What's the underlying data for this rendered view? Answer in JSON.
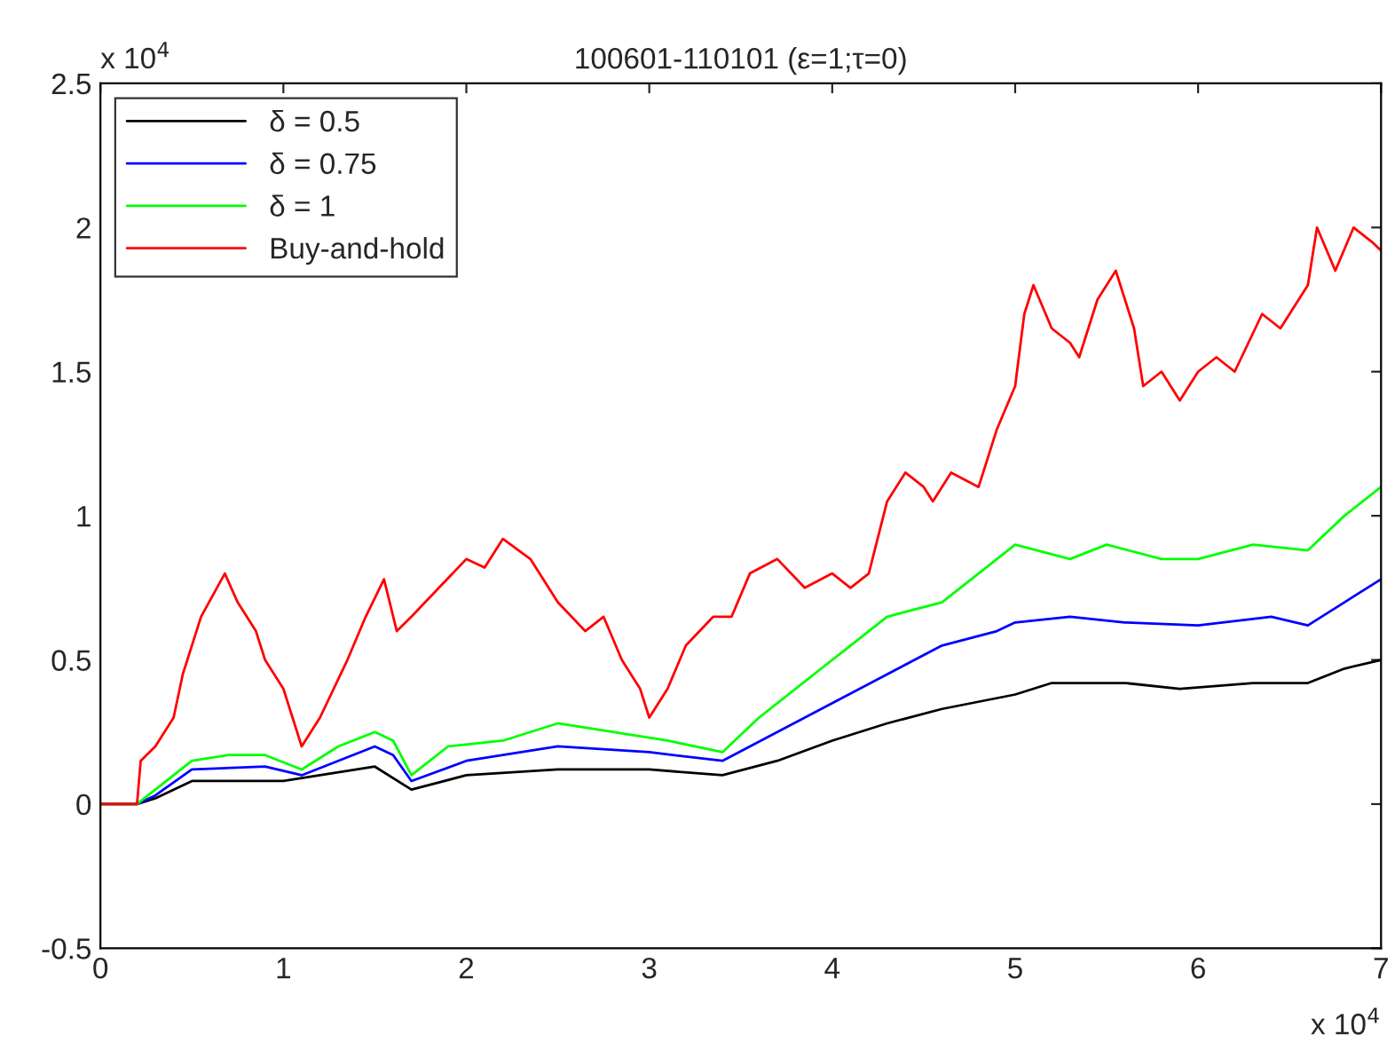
{
  "chart_data": {
    "type": "line",
    "title": "100601-110101 (ε=1;τ=0)",
    "annotations": [
      "x 10$^{4}$",
      "x 10$^{4}$"
    ],
    "xlim": [
      0,
      7
    ],
    "xticks": [
      0,
      1,
      2,
      3,
      4,
      5,
      6,
      7
    ],
    "ylim": [
      -0.5,
      2.5
    ],
    "yticks": [
      -0.5,
      0,
      0.5,
      1,
      1.5,
      2,
      2.5
    ],
    "grid": false,
    "legend": "top left",
    "line_style": "solid",
    "series": [
      {
        "name": "δ = 0.5",
        "color": "#000000",
        "x": [
          0,
          0.2,
          0.3,
          0.5,
          1.0,
          1.5,
          1.7,
          2.0,
          2.5,
          3.0,
          3.4,
          3.7,
          4.0,
          4.3,
          4.6,
          5.0,
          5.2,
          5.6,
          5.9,
          6.3,
          6.6,
          6.8,
          7.0
        ],
        "values": [
          0,
          0,
          0.02,
          0.08,
          0.08,
          0.13,
          0.05,
          0.1,
          0.12,
          0.12,
          0.1,
          0.15,
          0.22,
          0.28,
          0.33,
          0.38,
          0.42,
          0.42,
          0.4,
          0.42,
          0.42,
          0.47,
          0.5
        ]
      },
      {
        "name": "δ = 0.75",
        "color": "#0000ff",
        "x": [
          0,
          0.2,
          0.3,
          0.5,
          0.9,
          1.1,
          1.5,
          1.6,
          1.7,
          2.0,
          2.5,
          3.0,
          3.4,
          3.7,
          4.0,
          4.3,
          4.6,
          4.9,
          5.0,
          5.3,
          5.6,
          6.0,
          6.4,
          6.6,
          6.8,
          7.0
        ],
        "values": [
          0,
          0,
          0.03,
          0.12,
          0.13,
          0.1,
          0.2,
          0.17,
          0.08,
          0.15,
          0.2,
          0.18,
          0.15,
          0.25,
          0.35,
          0.45,
          0.55,
          0.6,
          0.63,
          0.65,
          0.63,
          0.62,
          0.65,
          0.62,
          0.7,
          0.78
        ]
      },
      {
        "name": "δ = 1",
        "color": "#00ff00",
        "x": [
          0,
          0.2,
          0.3,
          0.5,
          0.7,
          0.9,
          1.1,
          1.3,
          1.5,
          1.6,
          1.7,
          1.9,
          2.2,
          2.5,
          2.8,
          3.1,
          3.4,
          3.6,
          3.9,
          4.1,
          4.3,
          4.6,
          4.8,
          5.0,
          5.3,
          5.5,
          5.8,
          6.0,
          6.3,
          6.6,
          6.8,
          7.0
        ],
        "values": [
          0,
          0,
          0.05,
          0.15,
          0.17,
          0.17,
          0.12,
          0.2,
          0.25,
          0.22,
          0.1,
          0.2,
          0.22,
          0.28,
          0.25,
          0.22,
          0.18,
          0.3,
          0.45,
          0.55,
          0.65,
          0.7,
          0.8,
          0.9,
          0.85,
          0.9,
          0.85,
          0.85,
          0.9,
          0.88,
          1.0,
          1.1
        ]
      },
      {
        "name": "Buy-and-hold",
        "color": "#ff0000",
        "x": [
          0,
          0.2,
          0.22,
          0.3,
          0.4,
          0.45,
          0.55,
          0.68,
          0.75,
          0.85,
          0.9,
          1.0,
          1.1,
          1.2,
          1.35,
          1.45,
          1.55,
          1.62,
          1.7,
          1.85,
          2.0,
          2.1,
          2.2,
          2.35,
          2.5,
          2.65,
          2.75,
          2.85,
          2.95,
          3.0,
          3.1,
          3.2,
          3.35,
          3.45,
          3.55,
          3.7,
          3.85,
          4.0,
          4.1,
          4.2,
          4.3,
          4.4,
          4.5,
          4.55,
          4.65,
          4.8,
          4.9,
          5.0,
          5.05,
          5.1,
          5.2,
          5.3,
          5.35,
          5.45,
          5.55,
          5.65,
          5.7,
          5.8,
          5.9,
          6.0,
          6.1,
          6.2,
          6.35,
          6.45,
          6.55,
          6.6,
          6.65,
          6.75,
          6.85,
          6.95,
          7.0
        ],
        "values": [
          0,
          0,
          0.15,
          0.2,
          0.3,
          0.45,
          0.65,
          0.8,
          0.7,
          0.6,
          0.5,
          0.4,
          0.2,
          0.3,
          0.5,
          0.65,
          0.78,
          0.6,
          0.65,
          0.75,
          0.85,
          0.82,
          0.92,
          0.85,
          0.7,
          0.6,
          0.65,
          0.5,
          0.4,
          0.3,
          0.4,
          0.55,
          0.65,
          0.65,
          0.8,
          0.85,
          0.75,
          0.8,
          0.75,
          0.8,
          1.05,
          1.15,
          1.1,
          1.05,
          1.15,
          1.1,
          1.3,
          1.45,
          1.7,
          1.8,
          1.65,
          1.6,
          1.55,
          1.75,
          1.85,
          1.65,
          1.45,
          1.5,
          1.4,
          1.5,
          1.55,
          1.5,
          1.7,
          1.65,
          1.75,
          1.8,
          2.0,
          1.85,
          2.0,
          1.95,
          1.92
        ]
      }
    ]
  }
}
